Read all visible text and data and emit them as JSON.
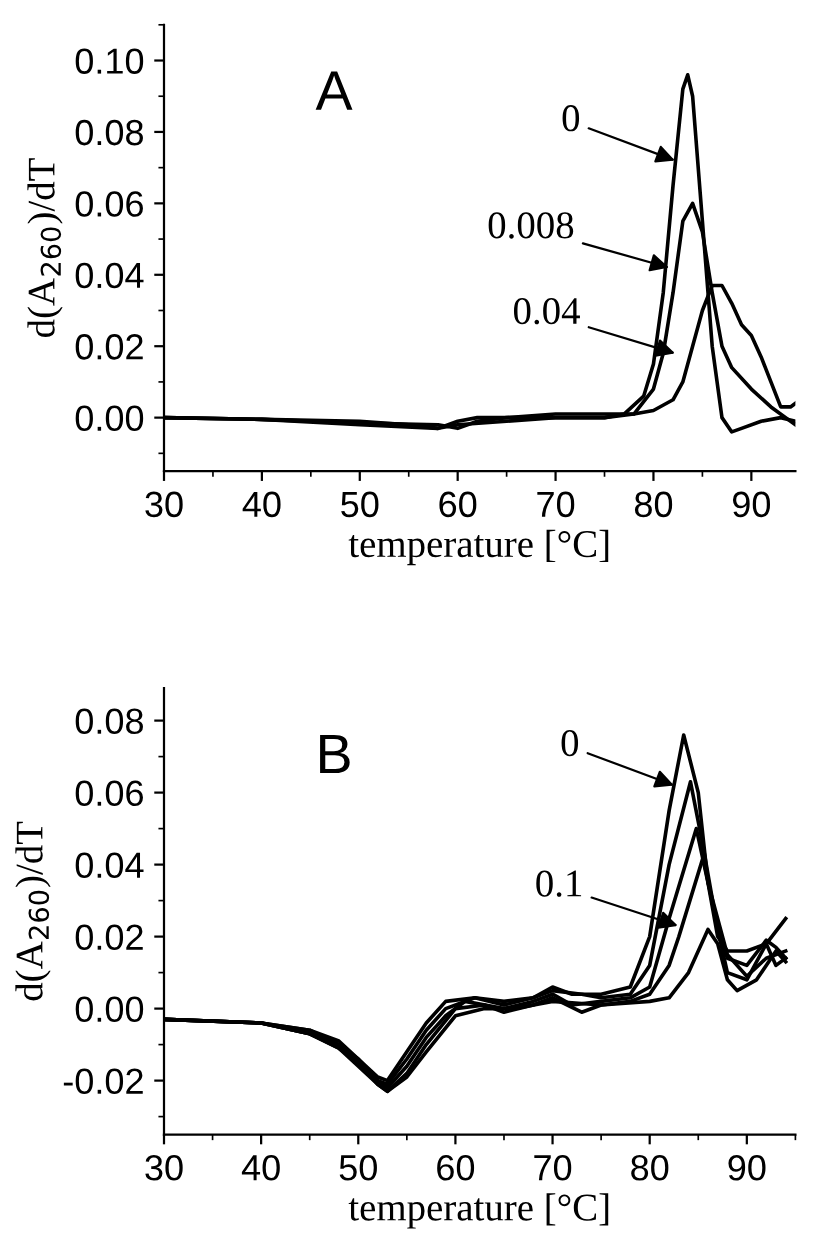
{
  "chart_data": [
    {
      "type": "line",
      "xlabel": "temperature [°C]",
      "ylabel": "d(A$_{260}$)/dT",
      "xlim": [
        30,
        94.5
      ],
      "ylim": [
        -0.015,
        0.11
      ],
      "xticks": [
        30,
        40,
        50,
        60,
        70,
        80,
        90
      ],
      "yticks": [
        {
          "value": 0,
          "label": "0.00"
        },
        {
          "value": 0.02,
          "label": "0.02"
        },
        {
          "value": 0.04,
          "label": "0.04"
        },
        {
          "value": 0.06,
          "label": "0.06"
        },
        {
          "value": 0.08,
          "label": "0.08"
        },
        {
          "value": 0.1,
          "label": "0.10"
        }
      ],
      "marker": "none",
      "line_style": "solid",
      "annotations": [
        "A",
        {
          "text": "0",
          "x": 82.2,
          "y": 0.072
        },
        {
          "text": "0.008",
          "x": 81.6,
          "y": 0.042
        },
        {
          "text": "0.04",
          "x": 82.2,
          "y": 0.018
        }
      ],
      "series": [
        {
          "color": "#000000",
          "x": [
            30,
            40,
            50,
            55,
            58,
            60,
            62,
            65,
            70,
            75,
            77,
            79,
            80,
            81,
            82,
            83,
            83.5,
            84,
            85,
            86,
            87,
            88,
            89,
            91,
            93,
            94.5
          ],
          "values": [
            0,
            -0.0005,
            -0.001,
            -0.002,
            -0.003,
            -0.001,
            0,
            0,
            0,
            0,
            0.001,
            0.006,
            0.015,
            0.035,
            0.065,
            0.092,
            0.096,
            0.09,
            0.055,
            0.02,
            0,
            -0.004,
            -0.003,
            -0.001,
            0,
            -0.001
          ]
        },
        {
          "color": "#000000",
          "x": [
            30,
            40,
            50,
            58,
            60,
            65,
            70,
            75,
            78,
            80,
            81,
            82,
            83,
            84,
            85,
            86,
            87,
            88,
            90,
            92,
            94.5
          ],
          "values": [
            0,
            -0.0005,
            -0.002,
            -0.003,
            -0.002,
            -0.001,
            0,
            0,
            0.001,
            0.008,
            0.018,
            0.035,
            0.055,
            0.06,
            0.052,
            0.035,
            0.02,
            0.014,
            0.008,
            0.003,
            -0.002
          ]
        },
        {
          "color": "#000000",
          "x": [
            30,
            40,
            50,
            58,
            60,
            62,
            65,
            70,
            74,
            78,
            80,
            82,
            83,
            84,
            85,
            86,
            87,
            88,
            89,
            90,
            91,
            92,
            93,
            94,
            94.5
          ],
          "values": [
            0,
            -0.0005,
            -0.0015,
            -0.002,
            -0.003,
            -0.001,
            0,
            0.001,
            0.001,
            0.001,
            0.002,
            0.005,
            0.01,
            0.02,
            0.03,
            0.037,
            0.037,
            0.032,
            0.026,
            0.023,
            0.017,
            0.01,
            0.003,
            0.003,
            0.004
          ]
        }
      ]
    },
    {
      "type": "line",
      "xlabel": "temperature [°C]",
      "ylabel": "d(A$_{260}$)/dT",
      "xlim": [
        30,
        95
      ],
      "ylim": [
        -0.035,
        0.089
      ],
      "xticks": [
        30,
        40,
        50,
        60,
        70,
        80,
        90
      ],
      "yticks": [
        {
          "value": -0.02,
          "label": "-0.02"
        },
        {
          "value": 0,
          "label": "0.00"
        },
        {
          "value": 0.02,
          "label": "0.02"
        },
        {
          "value": 0.04,
          "label": "0.04"
        },
        {
          "value": 0.06,
          "label": "0.06"
        },
        {
          "value": 0.08,
          "label": "0.08"
        }
      ],
      "marker": "none",
      "line_style": "solid",
      "annotations": [
        "B",
        {
          "text": "0",
          "x": 82.5,
          "y": 0.062
        },
        {
          "text": "0.1",
          "x": 82.9,
          "y": 0.023
        }
      ],
      "series": [
        {
          "color": "#000000",
          "x": [
            30,
            40,
            45,
            48,
            50,
            52,
            53,
            55,
            57,
            59,
            62,
            65,
            68,
            70,
            72,
            75,
            78,
            80,
            82,
            83.5,
            85,
            86,
            87,
            88,
            90,
            92,
            94
          ],
          "values": [
            -0.003,
            -0.004,
            -0.006,
            -0.01,
            -0.014,
            -0.019,
            -0.02,
            -0.012,
            -0.004,
            0.002,
            0.003,
            0.002,
            0.003,
            0.006,
            0.004,
            0.004,
            0.006,
            0.02,
            0.055,
            0.076,
            0.06,
            0.035,
            0.02,
            0.016,
            0.016,
            0.018,
            0.025
          ]
        },
        {
          "color": "#000000",
          "x": [
            30,
            40,
            45,
            48,
            50,
            52,
            53,
            55,
            57,
            59,
            62,
            65,
            68,
            70,
            73,
            75,
            78,
            80,
            82,
            84.2,
            85.5,
            87,
            88,
            90,
            92,
            93,
            94
          ],
          "values": [
            -0.003,
            -0.004,
            -0.006,
            -0.009,
            -0.014,
            -0.02,
            -0.021,
            -0.014,
            -0.006,
            0,
            0.003,
            0.001,
            0.003,
            0.005,
            0.004,
            0.003,
            0.004,
            0.012,
            0.04,
            0.063,
            0.045,
            0.022,
            0.014,
            0.012,
            0.019,
            0.017,
            0.014
          ]
        },
        {
          "color": "#000000",
          "x": [
            30,
            40,
            45,
            48,
            50,
            52,
            53,
            55,
            57,
            59,
            61,
            65,
            68,
            70,
            72,
            75,
            78,
            80,
            82,
            84.8,
            86,
            88,
            90,
            92,
            94
          ],
          "values": [
            -0.003,
            -0.004,
            -0.007,
            -0.01,
            -0.015,
            -0.02,
            -0.022,
            -0.016,
            -0.008,
            -0.002,
            0.002,
            0,
            0.002,
            0.004,
            0.001,
            0.002,
            0.003,
            0.006,
            0.025,
            0.05,
            0.035,
            0.015,
            0.009,
            0.014,
            0.016
          ]
        },
        {
          "color": "#000000",
          "x": [
            30,
            40,
            45,
            48,
            50,
            52,
            53,
            55,
            57,
            60,
            63,
            65,
            68,
            70,
            73,
            75,
            78,
            80,
            82,
            83,
            85.5,
            87,
            88,
            90,
            92,
            93,
            94
          ],
          "values": [
            -0.003,
            -0.004,
            -0.007,
            -0.011,
            -0.015,
            -0.021,
            -0.023,
            -0.018,
            -0.01,
            0,
            0.001,
            -0.001,
            0.001,
            0.003,
            -0.001,
            0.001,
            0.002,
            0.004,
            0.012,
            0.02,
            0.042,
            0.022,
            0.01,
            0.008,
            0.018,
            0.012,
            0.014
          ]
        },
        {
          "color": "#000000",
          "x": [
            30,
            40,
            45,
            48,
            50,
            52,
            53,
            55,
            57,
            60,
            63,
            66,
            70,
            75,
            80,
            82,
            84,
            86,
            87,
            88,
            89,
            91,
            93,
            94
          ],
          "values": [
            -0.003,
            -0.004,
            -0.007,
            -0.011,
            -0.016,
            -0.021,
            -0.023,
            -0.019,
            -0.012,
            -0.002,
            0,
            0,
            0.002,
            0.001,
            0.002,
            0.003,
            0.01,
            0.022,
            0.018,
            0.008,
            0.005,
            0.008,
            0.016,
            0.013
          ]
        }
      ]
    }
  ]
}
